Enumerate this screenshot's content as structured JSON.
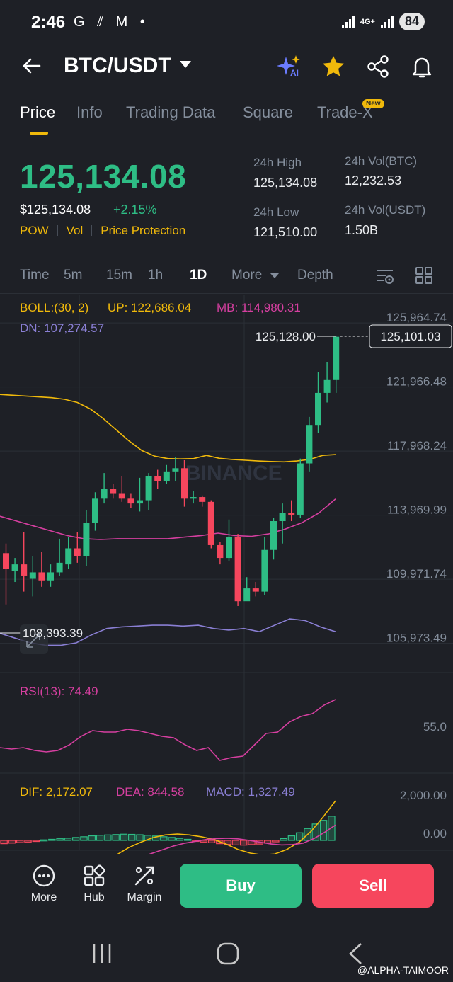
{
  "status_bar": {
    "time": "2:46",
    "left_icons": "G ⫽ M •",
    "network": "4G+",
    "battery": "84"
  },
  "header": {
    "pair": "BTC/USDT",
    "ai_label": "AI"
  },
  "tabs": [
    {
      "label": "Price",
      "active": true
    },
    {
      "label": "Info"
    },
    {
      "label": "Trading Data"
    },
    {
      "label": "Square"
    },
    {
      "label": "Trade-X",
      "badge": "New"
    }
  ],
  "ticker": {
    "last_price": "125,134.08",
    "usd_price": "$125,134.08",
    "change": "+2.15%",
    "tags": [
      "POW",
      "Vol",
      "Price Protection"
    ],
    "high_label": "24h High",
    "high": "125,134.08",
    "low_label": "24h Low",
    "low": "121,510.00",
    "vol_btc_label": "24h Vol(BTC)",
    "vol_btc": "12,232.53",
    "vol_usdt_label": "24h Vol(USDT)",
    "vol_usdt": "1.50B"
  },
  "intervals": {
    "items": [
      "Time",
      "5m",
      "15m",
      "1h",
      "1D",
      "More",
      "Depth"
    ],
    "active": "1D"
  },
  "indicators": {
    "boll": "BOLL:(30, 2)",
    "up": "UP: 122,686.04",
    "mb": "MB: 114,980.31",
    "dn": "DN: 107,274.57",
    "rsi": "RSI(13): 74.49",
    "dif": "DIF: 2,172.07",
    "dea": "DEA: 844.58",
    "macd": "MACD: 1,327.49"
  },
  "watermark": "BINANCE",
  "chart_data": {
    "type": "candlestick",
    "y_ticks": [
      "125,964.74",
      "121,966.48",
      "117,968.24",
      "113,969.99",
      "109,971.74",
      "105,973.49"
    ],
    "ylim": [
      104500,
      126500
    ],
    "high_label": "125,128.00",
    "current_price_label": "125,101.03",
    "low_label": "108,393.39",
    "candles": [
      [
        111600,
        110600,
        112200,
        108400
      ],
      [
        110500,
        110900,
        111300,
        109800
      ],
      [
        110900,
        110200,
        112900,
        109200
      ],
      [
        110000,
        110400,
        111400,
        108900
      ],
      [
        110400,
        109900,
        111700,
        109500
      ],
      [
        109900,
        110400,
        110900,
        109500
      ],
      [
        110400,
        111000,
        112500,
        110200
      ],
      [
        110900,
        111900,
        112600,
        110600
      ],
      [
        111900,
        111400,
        112900,
        111000
      ],
      [
        111400,
        113500,
        114300,
        110800
      ],
      [
        113500,
        115000,
        115400,
        113000
      ],
      [
        115000,
        115600,
        116600,
        114700
      ],
      [
        115600,
        115300,
        115900,
        115000
      ],
      [
        115300,
        115000,
        116400,
        114800
      ],
      [
        115000,
        114700,
        115300,
        114400
      ],
      [
        114700,
        114900,
        116300,
        114200
      ],
      [
        114900,
        116400,
        116600,
        114300
      ],
      [
        116400,
        116100,
        116800,
        115600
      ],
      [
        116100,
        116700,
        117100,
        115900
      ],
      [
        116700,
        116900,
        117600,
        116100
      ],
      [
        116900,
        115000,
        117400,
        114500
      ],
      [
        115000,
        115100,
        115500,
        114700
      ],
      [
        115100,
        114800,
        115200,
        114500
      ],
      [
        114800,
        112100,
        114900,
        111900
      ],
      [
        112100,
        111300,
        112300,
        110900
      ],
      [
        111300,
        112600,
        113700,
        111100
      ],
      [
        112600,
        108600,
        112800,
        108300
      ],
      [
        108600,
        109400,
        110100,
        108700
      ],
      [
        109400,
        109200,
        109800,
        108900
      ],
      [
        109200,
        111800,
        112600,
        109000
      ],
      [
        111800,
        113600,
        113800,
        111200
      ],
      [
        113600,
        114100,
        114700,
        112200
      ],
      [
        114100,
        114000,
        114900,
        113600
      ],
      [
        114000,
        117200,
        117500,
        113800
      ],
      [
        117200,
        119600,
        120100,
        116700
      ],
      [
        119600,
        121600,
        122900,
        119100
      ],
      [
        121600,
        122400,
        123500,
        121000
      ],
      [
        122400,
        125100,
        125128,
        121600
      ]
    ],
    "boll_up": [
      121500,
      121450,
      121400,
      121350,
      121300,
      121200,
      121000,
      120600,
      120000,
      119300,
      118600,
      118000,
      117650,
      117500,
      117480,
      117500,
      117700,
      117520,
      117450,
      117400,
      117350,
      117320,
      117300,
      117350,
      117450,
      117700,
      117750
    ],
    "boll_mb": [
      113900,
      113600,
      113300,
      113000,
      112700,
      112500,
      112450,
      112500,
      112500,
      112500,
      112500,
      112600,
      112700,
      112850,
      112700,
      112650,
      112800,
      113100,
      113500,
      114100,
      114980
    ],
    "boll_dn": [
      106600,
      106300,
      106000,
      105850,
      105850,
      106000,
      106500,
      106900,
      107000,
      107050,
      107100,
      107100,
      107050,
      107100,
      106900,
      106800,
      106900,
      106700,
      107100,
      107500,
      107400,
      107000,
      106700
    ],
    "rsi_ticks": [
      "55.0"
    ],
    "rsi": [
      40,
      39,
      40,
      38,
      37,
      38,
      42,
      48,
      52,
      51,
      51,
      53,
      52,
      50,
      48,
      47,
      42,
      38,
      40,
      31,
      33,
      34,
      42,
      50,
      51,
      58,
      62,
      64,
      70,
      74
    ],
    "macd_ticks": [
      "2,000.00",
      "0.00"
    ],
    "macd_hist": [
      -180,
      -150,
      -120,
      -90,
      -60,
      30,
      60,
      90,
      120,
      160,
      200,
      250,
      280,
      300,
      320,
      340,
      330,
      310,
      280,
      240,
      200,
      160,
      110,
      60,
      -40,
      -90,
      -130,
      -180,
      -220,
      -250,
      -260,
      -230,
      -200,
      -150,
      -80,
      100,
      250,
      420,
      650,
      900,
      1100,
      1327
    ],
    "macd_dif": [
      -1500,
      -1200,
      -800,
      -400,
      -100,
      150,
      300,
      350,
      300,
      200,
      50,
      -200,
      -500,
      -700,
      -800,
      -750,
      -500,
      -100,
      500,
      1300,
      2172
    ],
    "macd_dea": [
      -1300,
      -1100,
      -900,
      -700,
      -500,
      -300,
      -150,
      -50,
      50,
      100,
      120,
      80,
      0,
      -100,
      -200,
      -250,
      -230,
      -150,
      100,
      450,
      845
    ]
  },
  "bottom": {
    "more": "More",
    "hub": "Hub",
    "margin": "Margin",
    "buy": "Buy",
    "sell": "Sell"
  },
  "footer_watermark": "@ALPHA-TAIMOOR",
  "colors": {
    "up": "#2ebd85",
    "down": "#f6465d",
    "accent": "#f0b90b",
    "boll_up": "#f0b90b",
    "boll_mb": "#d63fa0",
    "boll_dn": "#8a7fd4"
  }
}
